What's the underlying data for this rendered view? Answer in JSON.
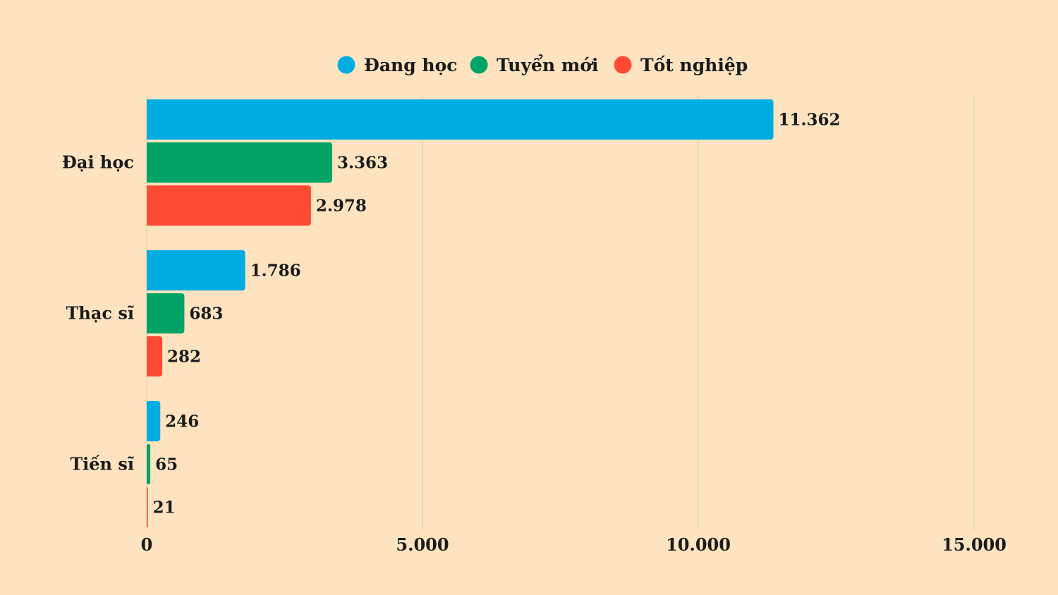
{
  "chart_data": {
    "type": "bar",
    "orientation": "horizontal",
    "categories": [
      "Đại học",
      "Thạc sĩ",
      "Tiến sĩ"
    ],
    "series": [
      {
        "name": "Đang học",
        "color": "#00ade2",
        "values": [
          11362,
          1786,
          246
        ],
        "labels": [
          "11.362",
          "1.786",
          "246"
        ]
      },
      {
        "name": "Tuyển mới",
        "color": "#00a466",
        "values": [
          3363,
          683,
          65
        ],
        "labels": [
          "3.363",
          "683",
          "65"
        ]
      },
      {
        "name": "Tốt nghiệp",
        "color": "#ff4b33",
        "values": [
          2978,
          282,
          21
        ],
        "labels": [
          "2.978",
          "282",
          "21"
        ]
      }
    ],
    "xlim": [
      0,
      15000
    ],
    "xticks": [
      0,
      5000,
      10000,
      15000
    ],
    "xtick_labels": [
      "0",
      "5.000",
      "10.000",
      "15.000"
    ],
    "grid": "vertical",
    "legend_position": "top-center",
    "background": "#fde3c0",
    "title": "",
    "xlabel": "",
    "ylabel": ""
  }
}
